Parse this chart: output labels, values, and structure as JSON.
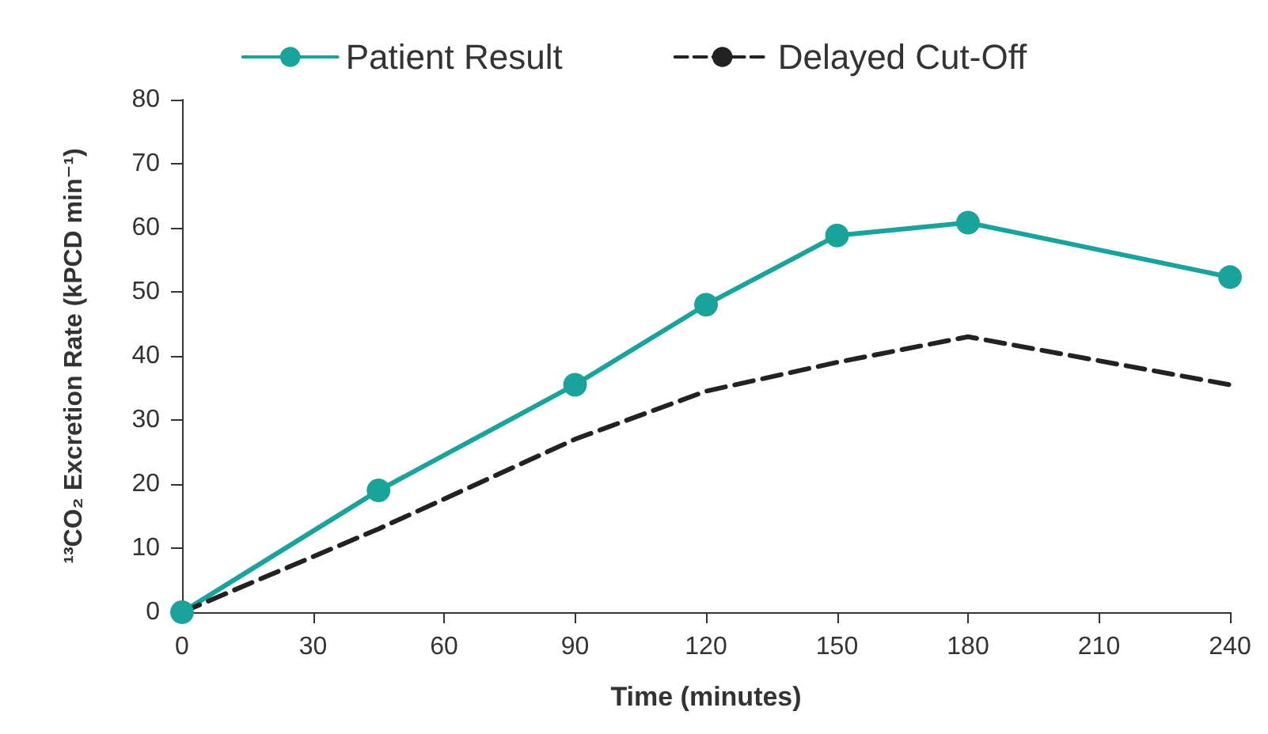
{
  "chart_data": {
    "type": "line",
    "xlabel": "Time (minutes)",
    "ylabel": "¹³CO₂ Excretion Rate (kPCD min⁻¹)",
    "xlim": [
      0,
      240
    ],
    "xticks": [
      0,
      30,
      60,
      90,
      120,
      150,
      180,
      210,
      240
    ],
    "ylim": [
      0,
      80
    ],
    "yticks": [
      0,
      10,
      20,
      30,
      40,
      50,
      60,
      70,
      80
    ],
    "grid": false,
    "legend": "top",
    "series": [
      {
        "name": "Patient Result",
        "color": "#1aa39a",
        "x": [
          0,
          45,
          90,
          120,
          150,
          180,
          240
        ],
        "values": [
          0,
          19,
          35.5,
          48,
          58.8,
          60.8,
          52.3
        ],
        "marker": "circle",
        "line_style": "solid"
      },
      {
        "name": "Delayed Cut-Off",
        "color": "#222222",
        "x": [
          0,
          45,
          90,
          120,
          150,
          180,
          240
        ],
        "values": [
          0,
          13,
          27,
          34.5,
          39,
          43,
          35.5
        ],
        "marker": "none",
        "line_style": "dashed"
      }
    ]
  }
}
